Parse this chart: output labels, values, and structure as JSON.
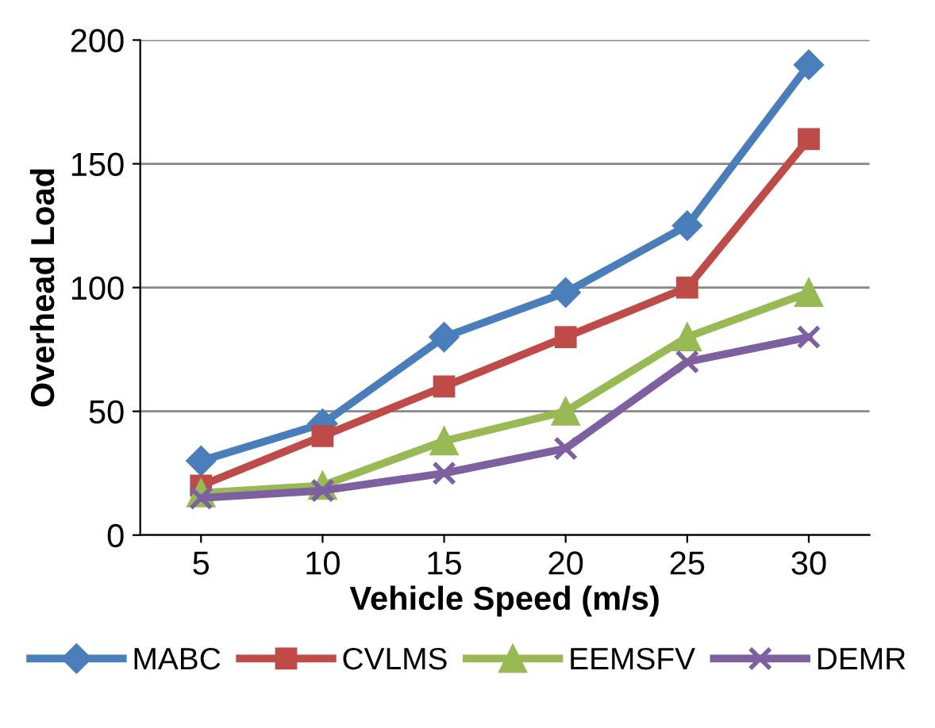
{
  "chart_data": {
    "type": "line",
    "xlabel": "Vehicle Speed (m/s)",
    "ylabel": "Overhead Load",
    "categories": [
      "5",
      "10",
      "15",
      "20",
      "25",
      "30"
    ],
    "series": [
      {
        "name": "MABC",
        "color": "#4a7ebb",
        "marker": "diamond",
        "values": [
          30,
          45,
          80,
          98,
          125,
          190
        ]
      },
      {
        "name": "CVLMS",
        "color": "#be4b48",
        "marker": "square",
        "values": [
          20,
          40,
          60,
          80,
          100,
          160
        ]
      },
      {
        "name": "EEMSFV",
        "color": "#98b954",
        "marker": "triangle",
        "values": [
          17,
          20,
          38,
          50,
          80,
          98
        ]
      },
      {
        "name": "DEMR",
        "color": "#7d60a0",
        "marker": "cross",
        "values": [
          15,
          18,
          25,
          35,
          70,
          80
        ]
      }
    ],
    "ylim": [
      0,
      200
    ],
    "yticks": [
      0,
      50,
      100,
      150,
      200
    ],
    "grid": "y",
    "legend": "bottom",
    "line_style": "solid"
  }
}
